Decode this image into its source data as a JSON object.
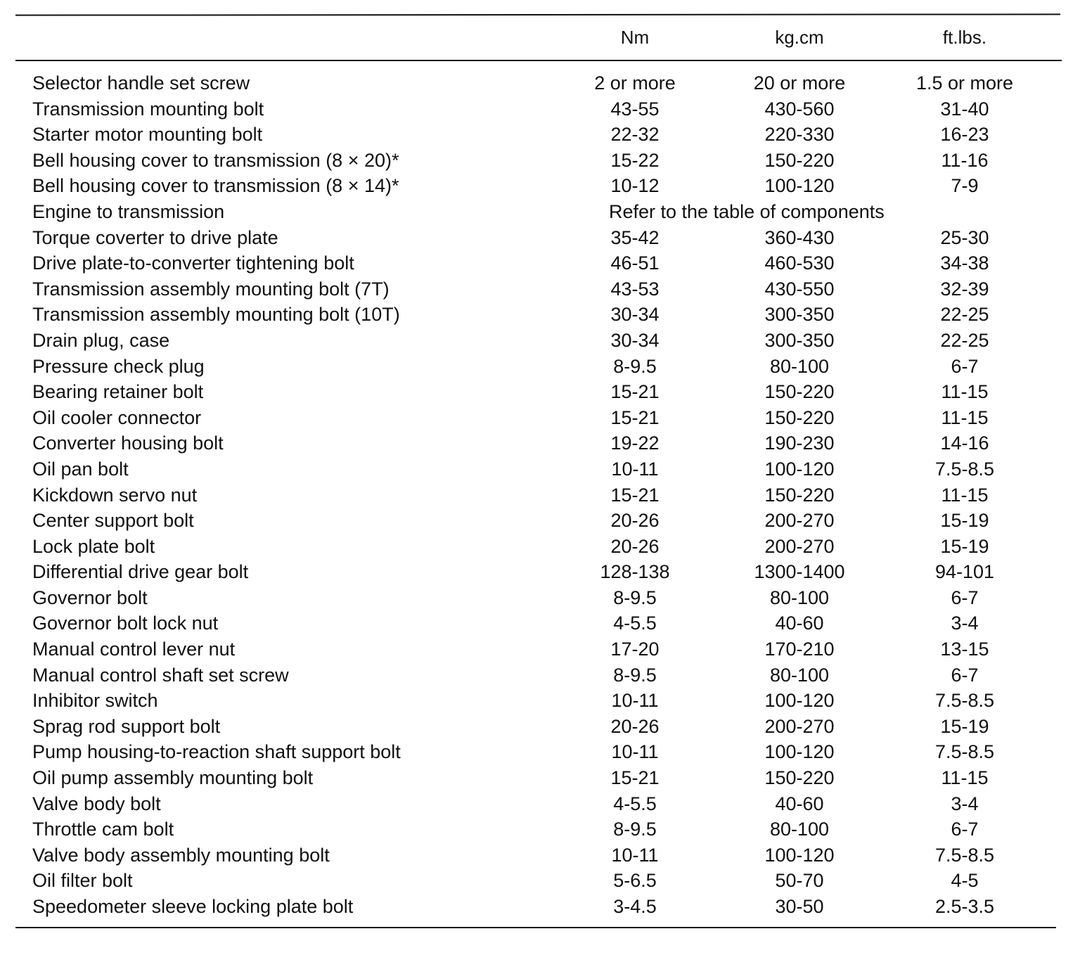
{
  "table": {
    "columns": [
      "Nm",
      "kg.cm",
      "ft.lbs."
    ],
    "rows": [
      {
        "label": "Selector handle set screw",
        "nm": "2 or more",
        "kgcm": "20 or more",
        "ftlbs": "1.5 or more"
      },
      {
        "label": "Transmission mounting bolt",
        "nm": "43-55",
        "kgcm": "430-560",
        "ftlbs": "31-40"
      },
      {
        "label": "Starter motor mounting bolt",
        "nm": "22-32",
        "kgcm": "220-330",
        "ftlbs": "16-23"
      },
      {
        "label": "Bell housing cover to transmission (8 × 20)*",
        "nm": "15-22",
        "kgcm": "150-220",
        "ftlbs": "11-16"
      },
      {
        "label": "Bell housing cover to transmission (8 × 14)*",
        "nm": "10-12",
        "kgcm": "100-120",
        "ftlbs": "7-9"
      },
      {
        "label": "Engine to transmission",
        "note": "Refer to the table of components"
      },
      {
        "label": "Torque coverter to drive plate",
        "nm": "35-42",
        "kgcm": "360-430",
        "ftlbs": "25-30"
      },
      {
        "label": "Drive plate-to-converter tightening bolt",
        "nm": "46-51",
        "kgcm": "460-530",
        "ftlbs": "34-38"
      },
      {
        "label": "Transmission assembly mounting bolt (7T)",
        "nm": "43-53",
        "kgcm": "430-550",
        "ftlbs": "32-39"
      },
      {
        "label": "Transmission assembly mounting bolt (10T)",
        "nm": "30-34",
        "kgcm": "300-350",
        "ftlbs": "22-25"
      },
      {
        "label": "Drain plug, case",
        "nm": "30-34",
        "kgcm": "300-350",
        "ftlbs": "22-25"
      },
      {
        "label": "Pressure check plug",
        "nm": "8-9.5",
        "kgcm": "80-100",
        "ftlbs": "6-7"
      },
      {
        "label": "Bearing retainer bolt",
        "nm": "15-21",
        "kgcm": "150-220",
        "ftlbs": "11-15"
      },
      {
        "label": "Oil cooler connector",
        "nm": "15-21",
        "kgcm": "150-220",
        "ftlbs": "11-15"
      },
      {
        "label": "Converter housing bolt",
        "nm": "19-22",
        "kgcm": "190-230",
        "ftlbs": "14-16"
      },
      {
        "label": "Oil pan bolt",
        "nm": "10-11",
        "kgcm": "100-120",
        "ftlbs": "7.5-8.5"
      },
      {
        "label": "Kickdown servo nut",
        "nm": "15-21",
        "kgcm": "150-220",
        "ftlbs": "11-15"
      },
      {
        "label": "Center support bolt",
        "nm": "20-26",
        "kgcm": "200-270",
        "ftlbs": "15-19"
      },
      {
        "label": "Lock plate bolt",
        "nm": "20-26",
        "kgcm": "200-270",
        "ftlbs": "15-19"
      },
      {
        "label": "Differential drive gear bolt",
        "nm": "128-138",
        "kgcm": "1300-1400",
        "ftlbs": "94-101"
      },
      {
        "label": "Governor bolt",
        "nm": "8-9.5",
        "kgcm": "80-100",
        "ftlbs": "6-7"
      },
      {
        "label": "Governor bolt lock nut",
        "nm": "4-5.5",
        "kgcm": "40-60",
        "ftlbs": "3-4"
      },
      {
        "label": "Manual control lever nut",
        "nm": "17-20",
        "kgcm": "170-210",
        "ftlbs": "13-15"
      },
      {
        "label": "Manual control shaft set screw",
        "nm": "8-9.5",
        "kgcm": "80-100",
        "ftlbs": "6-7"
      },
      {
        "label": "Inhibitor switch",
        "nm": "10-11",
        "kgcm": "100-120",
        "ftlbs": "7.5-8.5"
      },
      {
        "label": "Sprag rod support bolt",
        "nm": "20-26",
        "kgcm": "200-270",
        "ftlbs": "15-19"
      },
      {
        "label": "Pump housing-to-reaction shaft support bolt",
        "nm": "10-11",
        "kgcm": "100-120",
        "ftlbs": "7.5-8.5"
      },
      {
        "label": "Oil pump assembly mounting bolt",
        "nm": "15-21",
        "kgcm": "150-220",
        "ftlbs": "11-15"
      },
      {
        "label": "Valve body bolt",
        "nm": "4-5.5",
        "kgcm": "40-60",
        "ftlbs": "3-4"
      },
      {
        "label": "Throttle cam bolt",
        "nm": "8-9.5",
        "kgcm": "80-100",
        "ftlbs": "6-7"
      },
      {
        "label": "Valve body assembly mounting bolt",
        "nm": "10-11",
        "kgcm": "100-120",
        "ftlbs": "7.5-8.5"
      },
      {
        "label": "Oil filter bolt",
        "nm": "5-6.5",
        "kgcm": "50-70",
        "ftlbs": "4-5"
      },
      {
        "label": "Speedometer sleeve locking plate bolt",
        "nm": "3-4.5",
        "kgcm": "30-50",
        "ftlbs": "2.5-3.5"
      }
    ]
  }
}
